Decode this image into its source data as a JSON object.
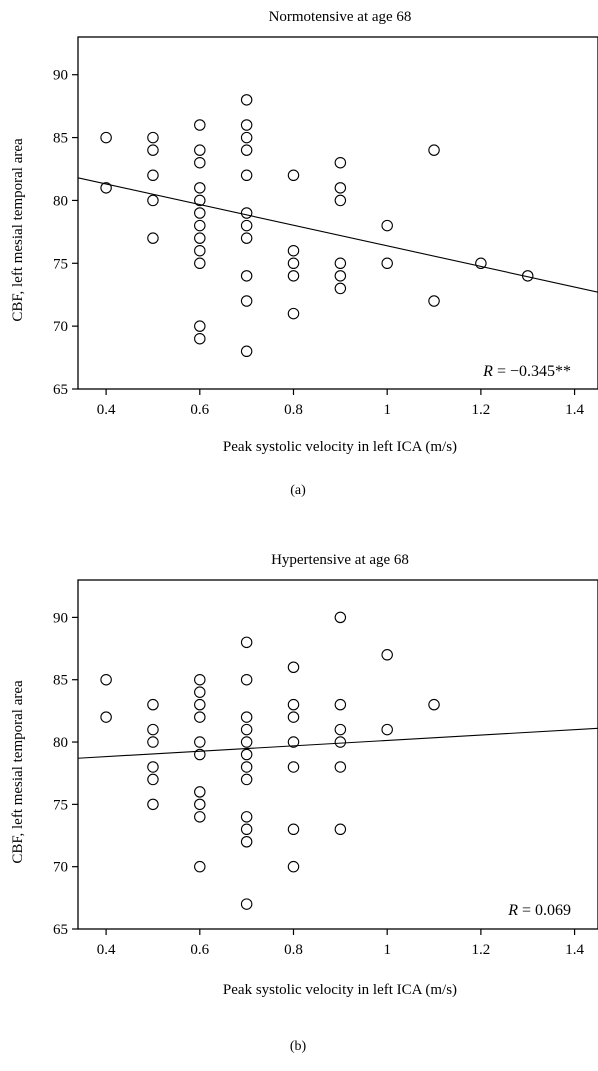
{
  "chart_data": [
    {
      "type": "scatter",
      "title": "Normotensive at age 68",
      "xlabel": "Peak systolic velocity in left ICA (m/s)",
      "ylabel": "CBF, left mesial temporal area",
      "xlim": [
        0.34,
        1.45
      ],
      "ylim": [
        65,
        93
      ],
      "xticks": [
        "0.4",
        "0.6",
        "0.8",
        "1",
        "1.2",
        "1.4"
      ],
      "yticks": [
        "65",
        "70",
        "75",
        "80",
        "85",
        "90"
      ],
      "points": [
        [
          0.4,
          85
        ],
        [
          0.4,
          81
        ],
        [
          0.5,
          85
        ],
        [
          0.5,
          84
        ],
        [
          0.5,
          82
        ],
        [
          0.5,
          80
        ],
        [
          0.5,
          77
        ],
        [
          0.6,
          86
        ],
        [
          0.6,
          84
        ],
        [
          0.6,
          83
        ],
        [
          0.6,
          81
        ],
        [
          0.6,
          80
        ],
        [
          0.6,
          79
        ],
        [
          0.6,
          78
        ],
        [
          0.6,
          77
        ],
        [
          0.6,
          76
        ],
        [
          0.6,
          75
        ],
        [
          0.6,
          70
        ],
        [
          0.6,
          69
        ],
        [
          0.7,
          88
        ],
        [
          0.7,
          86
        ],
        [
          0.7,
          85
        ],
        [
          0.7,
          84
        ],
        [
          0.7,
          82
        ],
        [
          0.7,
          79
        ],
        [
          0.7,
          78
        ],
        [
          0.7,
          77
        ],
        [
          0.7,
          74
        ],
        [
          0.7,
          72
        ],
        [
          0.7,
          68
        ],
        [
          0.8,
          82
        ],
        [
          0.8,
          76
        ],
        [
          0.8,
          75
        ],
        [
          0.8,
          74
        ],
        [
          0.8,
          71
        ],
        [
          0.9,
          83
        ],
        [
          0.9,
          81
        ],
        [
          0.9,
          80
        ],
        [
          0.9,
          75
        ],
        [
          0.9,
          74
        ],
        [
          0.9,
          73
        ],
        [
          1.0,
          78
        ],
        [
          1.0,
          75
        ],
        [
          1.1,
          84
        ],
        [
          1.1,
          72
        ],
        [
          1.2,
          75
        ],
        [
          1.3,
          74
        ]
      ],
      "fit_line": {
        "x": [
          0.34,
          1.45
        ],
        "y": [
          81.8,
          72.7
        ]
      },
      "annotation": {
        "symbol": "R",
        "text": " = −0.345**"
      },
      "panel_label": "(a)",
      "grid": false
    },
    {
      "type": "scatter",
      "title": "Hypertensive at age 68",
      "xlabel": "Peak systolic velocity in left ICA (m/s)",
      "ylabel": "CBF, left mesial temporal area",
      "xlim": [
        0.34,
        1.45
      ],
      "ylim": [
        65,
        93
      ],
      "xticks": [
        "0.4",
        "0.6",
        "0.8",
        "1",
        "1.2",
        "1.4"
      ],
      "yticks": [
        "65",
        "70",
        "75",
        "80",
        "85",
        "90"
      ],
      "points": [
        [
          0.4,
          85
        ],
        [
          0.4,
          82
        ],
        [
          0.5,
          83
        ],
        [
          0.5,
          81
        ],
        [
          0.5,
          80
        ],
        [
          0.5,
          78
        ],
        [
          0.5,
          77
        ],
        [
          0.5,
          75
        ],
        [
          0.6,
          85
        ],
        [
          0.6,
          84
        ],
        [
          0.6,
          83
        ],
        [
          0.6,
          82
        ],
        [
          0.6,
          80
        ],
        [
          0.6,
          79
        ],
        [
          0.6,
          76
        ],
        [
          0.6,
          75
        ],
        [
          0.6,
          74
        ],
        [
          0.6,
          70
        ],
        [
          0.7,
          88
        ],
        [
          0.7,
          85
        ],
        [
          0.7,
          82
        ],
        [
          0.7,
          81
        ],
        [
          0.7,
          80
        ],
        [
          0.7,
          79
        ],
        [
          0.7,
          78
        ],
        [
          0.7,
          77
        ],
        [
          0.7,
          74
        ],
        [
          0.7,
          73
        ],
        [
          0.7,
          72
        ],
        [
          0.7,
          67
        ],
        [
          0.8,
          86
        ],
        [
          0.8,
          83
        ],
        [
          0.8,
          82
        ],
        [
          0.8,
          80
        ],
        [
          0.8,
          78
        ],
        [
          0.8,
          73
        ],
        [
          0.8,
          70
        ],
        [
          0.9,
          90
        ],
        [
          0.9,
          83
        ],
        [
          0.9,
          81
        ],
        [
          0.9,
          80
        ],
        [
          0.9,
          78
        ],
        [
          0.9,
          73
        ],
        [
          1.0,
          87
        ],
        [
          1.0,
          81
        ],
        [
          1.1,
          83
        ]
      ],
      "fit_line": {
        "x": [
          0.34,
          1.45
        ],
        "y": [
          78.7,
          81.1
        ]
      },
      "annotation": {
        "symbol": "R",
        "text": " = 0.069"
      },
      "panel_label": "(b)",
      "grid": false
    }
  ]
}
